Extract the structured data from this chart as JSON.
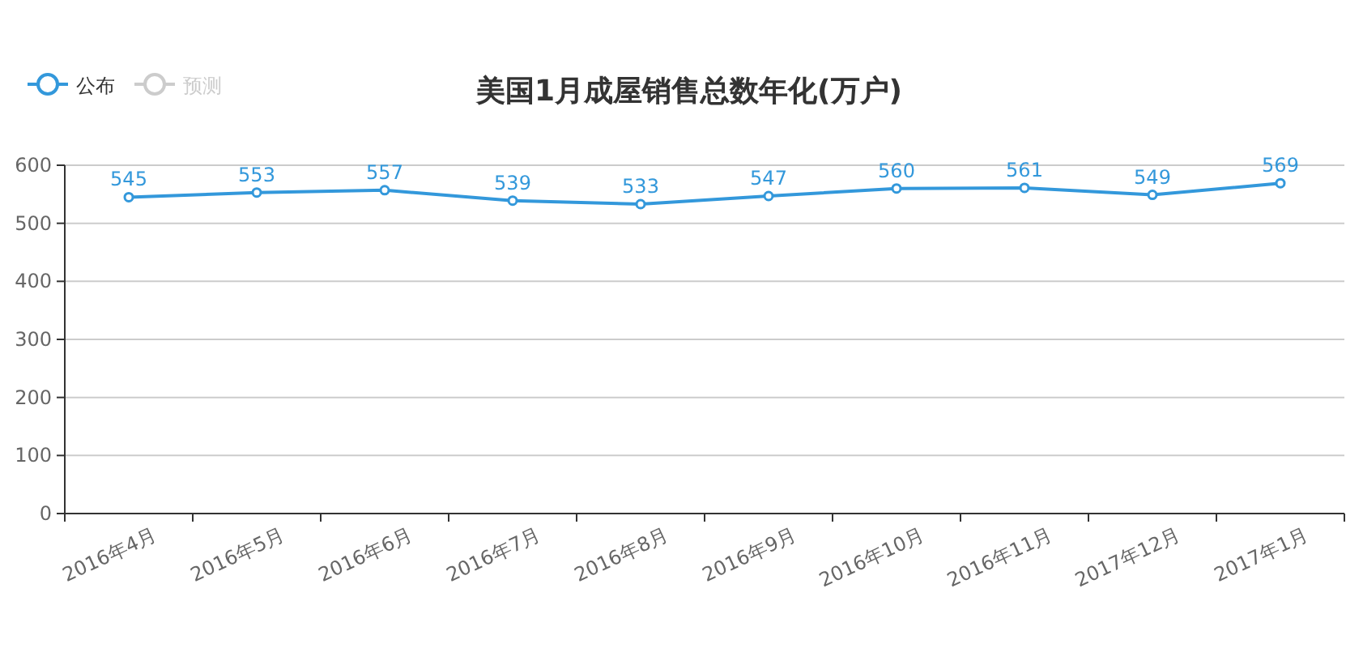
{
  "chart_data": {
    "type": "line",
    "title": "美国1月成屋销售总数年化(万户)",
    "categories": [
      "2016年4月",
      "2016年5月",
      "2016年6月",
      "2016年7月",
      "2016年8月",
      "2016年9月",
      "2016年10月",
      "2016年11月",
      "2017年12月",
      "2017年1月"
    ],
    "series": [
      {
        "name": "公布",
        "color": "#3398db",
        "values": [
          545,
          553,
          557,
          539,
          533,
          547,
          560,
          561,
          549,
          569
        ]
      },
      {
        "name": "预测",
        "color": "#cccccc",
        "values": [
          null,
          null,
          null,
          null,
          null,
          null,
          null,
          null,
          null,
          null
        ]
      }
    ],
    "ylim": [
      0,
      600
    ],
    "yticks": [
      0,
      100,
      200,
      300,
      400,
      500,
      600
    ],
    "grid": "y",
    "legend": "top left",
    "marker": "circle",
    "data_labels": true
  }
}
